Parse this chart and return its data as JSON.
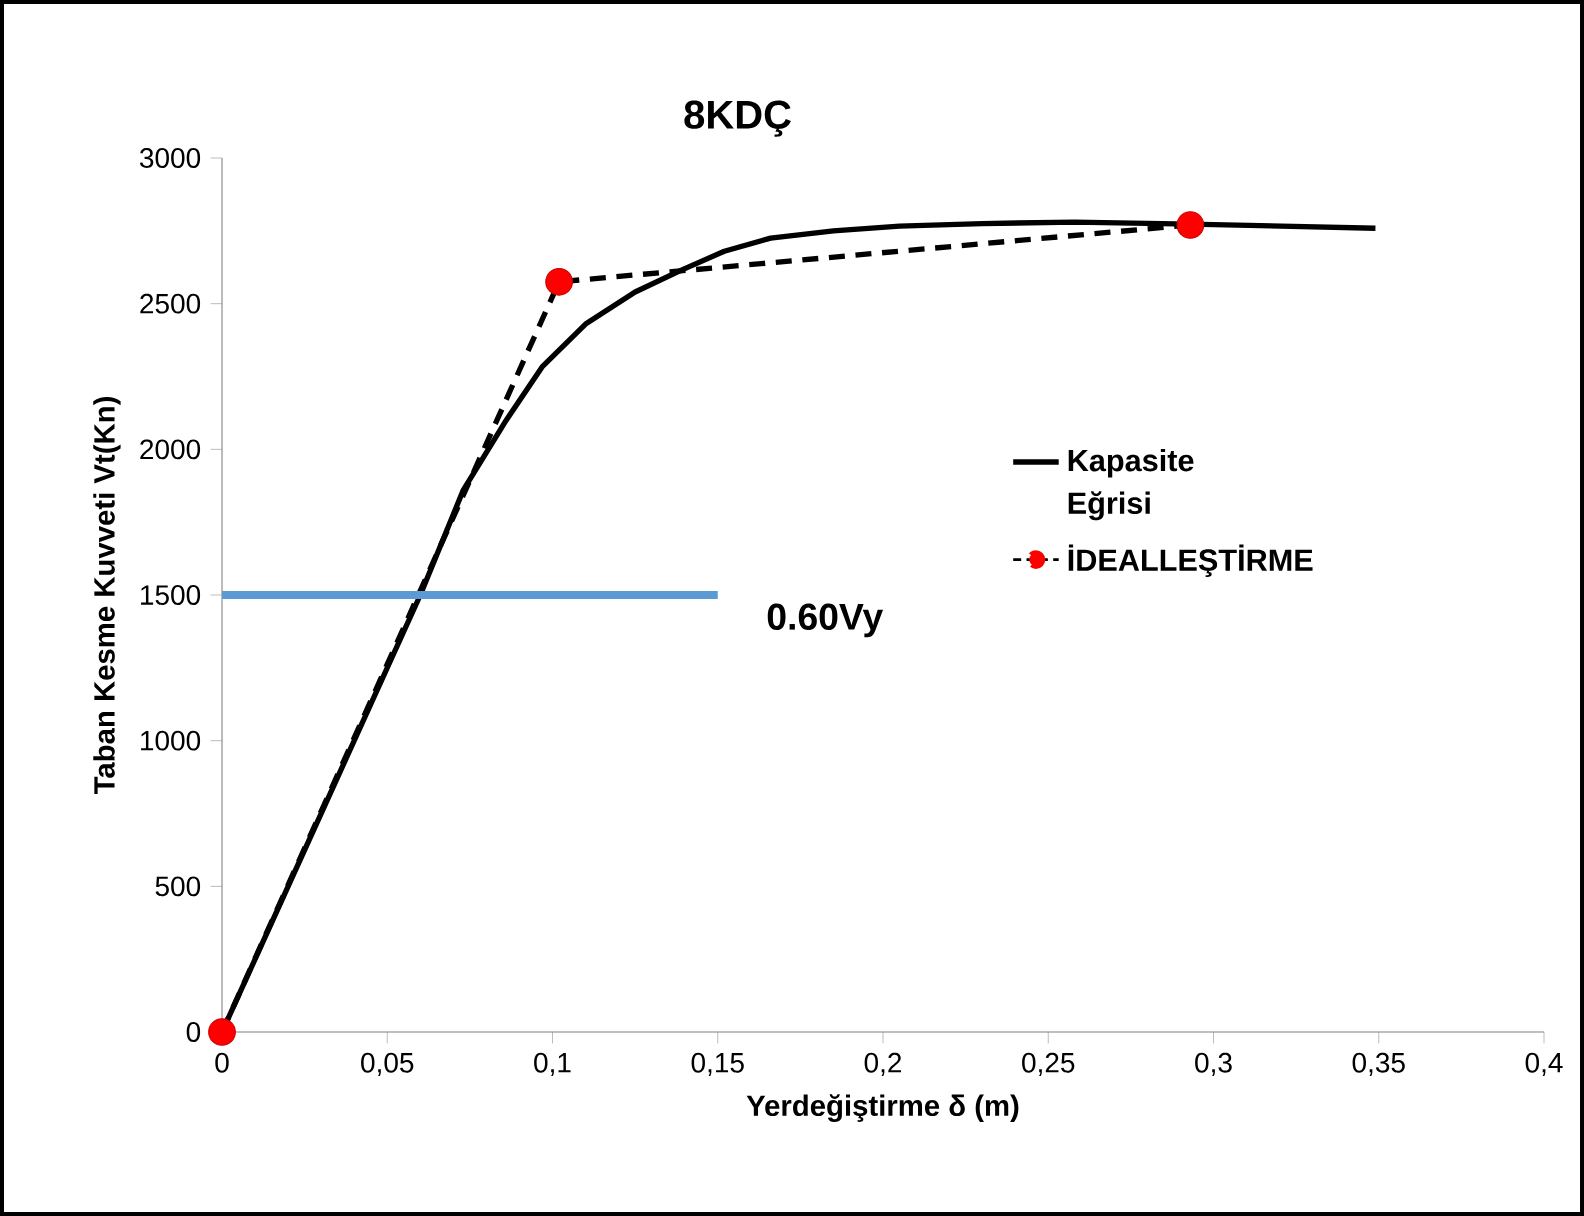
{
  "chart_data": {
    "type": "line",
    "title": "8KDÇ",
    "xlabel": "Yerdeğiştirme δ (m)",
    "ylabel": "Taban Kesme Kuvveti Vt(Kn)",
    "xlim": [
      0,
      0.4
    ],
    "ylim": [
      0,
      3000
    ],
    "xticks": [
      {
        "value": 0,
        "label": "0"
      },
      {
        "value": 0.05,
        "label": "0,05"
      },
      {
        "value": 0.1,
        "label": "0,1"
      },
      {
        "value": 0.15,
        "label": "0,15"
      },
      {
        "value": 0.2,
        "label": "0,2"
      },
      {
        "value": 0.25,
        "label": "0,25"
      },
      {
        "value": 0.3,
        "label": "0,3"
      },
      {
        "value": 0.35,
        "label": "0,35"
      },
      {
        "value": 0.4,
        "label": "0,4"
      }
    ],
    "yticks": [
      0,
      500,
      1000,
      1500,
      2000,
      2500,
      3000
    ],
    "grid": false,
    "legend": "right",
    "series": [
      {
        "name": "Kapasite Eğrisi",
        "color": "#000000",
        "line_style": "solid",
        "x": [
          0,
          0.02,
          0.04,
          0.06,
          0.073,
          0.086,
          0.097,
          0.11,
          0.125,
          0.139,
          0.152,
          0.166,
          0.185,
          0.205,
          0.23,
          0.258,
          0.293,
          0.349
        ],
        "values": [
          0,
          500,
          1000,
          1500,
          1860,
          2100,
          2285,
          2430,
          2540,
          2615,
          2680,
          2725,
          2750,
          2766,
          2775,
          2780,
          2773,
          2759
        ]
      },
      {
        "name": "İDEALLEŞTİRME",
        "color": "#000000",
        "line_style": "dashed",
        "x": [
          0,
          0.102,
          0.293
        ],
        "values": [
          0,
          2575,
          2770
        ]
      },
      {
        "type": "scatter",
        "color": "#ff0000",
        "marker": "circle",
        "x": [
          0,
          0.102,
          0.293
        ],
        "values": [
          0,
          2575,
          2770
        ]
      },
      {
        "color": "#5b9bd5",
        "line_style": "solid",
        "x": [
          0,
          0.15
        ],
        "values": [
          1500,
          1500
        ]
      }
    ],
    "annotations": [
      {
        "text": "0.60Vy",
        "x": 0.15,
        "y": 1500
      }
    ]
  }
}
